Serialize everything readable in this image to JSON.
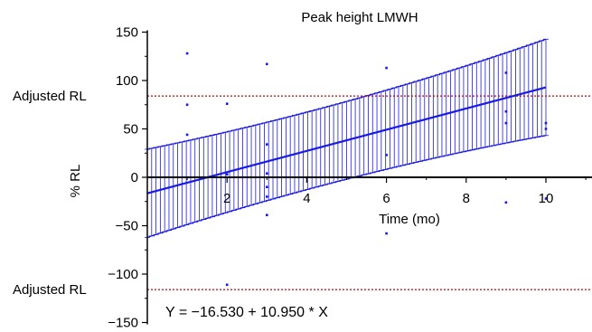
{
  "chart_data": {
    "type": "scatter",
    "title": "Peak height LMWH",
    "xlabel": "Time (mo)",
    "ylabel": "% RL",
    "xlim": [
      0,
      11.2
    ],
    "ylim": [
      -150,
      150
    ],
    "x_ticks": [
      "2",
      "4",
      "6",
      "8",
      "10"
    ],
    "y_ticks": [
      "150",
      "100",
      "50",
      "0",
      "−50",
      "−100",
      "−150"
    ],
    "grid": false,
    "legend": "none",
    "reference_lines": [
      {
        "label": "Adjusted RL",
        "y": 84
      },
      {
        "label": "Adjusted RL",
        "y": -116
      }
    ],
    "regression": {
      "equation": "Y = −16.530 + 10.950 * X",
      "intercept": -16.53,
      "slope": 10.95,
      "ci_at_x0": [
        -64,
        32
      ],
      "ci_at_x10": [
        36,
        148
      ]
    },
    "points": [
      {
        "x": 1,
        "y": 128
      },
      {
        "x": 1,
        "y": 75
      },
      {
        "x": 1,
        "y": 44
      },
      {
        "x": 2,
        "y": 76
      },
      {
        "x": 2,
        "y": 3
      },
      {
        "x": 2,
        "y": -111
      },
      {
        "x": 3,
        "y": 117
      },
      {
        "x": 3,
        "y": 34
      },
      {
        "x": 3,
        "y": 4
      },
      {
        "x": 3,
        "y": -10
      },
      {
        "x": 3,
        "y": -20
      },
      {
        "x": 3,
        "y": -39
      },
      {
        "x": 6,
        "y": 113
      },
      {
        "x": 6,
        "y": 23
      },
      {
        "x": 6,
        "y": -58
      },
      {
        "x": 9,
        "y": 108
      },
      {
        "x": 9,
        "y": 68
      },
      {
        "x": 9,
        "y": 56
      },
      {
        "x": 9,
        "y": -26
      },
      {
        "x": 10,
        "y": 56
      },
      {
        "x": 10,
        "y": 50
      },
      {
        "x": 10,
        "y": -22
      }
    ],
    "colors": {
      "fit": "#1a1ae6",
      "points": "#1a1ae6",
      "reference": "#cc0000",
      "axes": "#000000"
    }
  }
}
